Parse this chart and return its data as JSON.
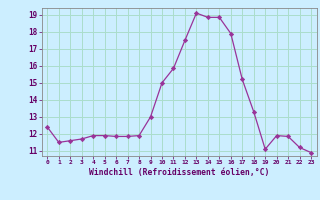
{
  "x": [
    0,
    1,
    2,
    3,
    4,
    5,
    6,
    7,
    8,
    9,
    10,
    11,
    12,
    13,
    14,
    15,
    16,
    17,
    18,
    19,
    20,
    21,
    22,
    23
  ],
  "y": [
    12.4,
    11.5,
    11.6,
    11.7,
    11.9,
    11.9,
    11.85,
    11.85,
    11.9,
    13.0,
    15.0,
    15.85,
    17.5,
    19.1,
    18.85,
    18.85,
    17.9,
    15.2,
    13.3,
    11.1,
    11.9,
    11.85,
    11.2,
    10.9
  ],
  "line_color": "#993399",
  "marker": "D",
  "marker_size": 2.2,
  "background_color": "#cceeff",
  "grid_color": "#aaddcc",
  "xlabel": "Windchill (Refroidissement éolien,°C)",
  "xlabel_color": "#660066",
  "tick_color": "#660066",
  "ylim_min": 10.7,
  "ylim_max": 19.4,
  "xlim_min": -0.5,
  "xlim_max": 23.5,
  "yticks": [
    11,
    12,
    13,
    14,
    15,
    16,
    17,
    18,
    19
  ],
  "xticks": [
    0,
    1,
    2,
    3,
    4,
    5,
    6,
    7,
    8,
    9,
    10,
    11,
    12,
    13,
    14,
    15,
    16,
    17,
    18,
    19,
    20,
    21,
    22,
    23
  ]
}
